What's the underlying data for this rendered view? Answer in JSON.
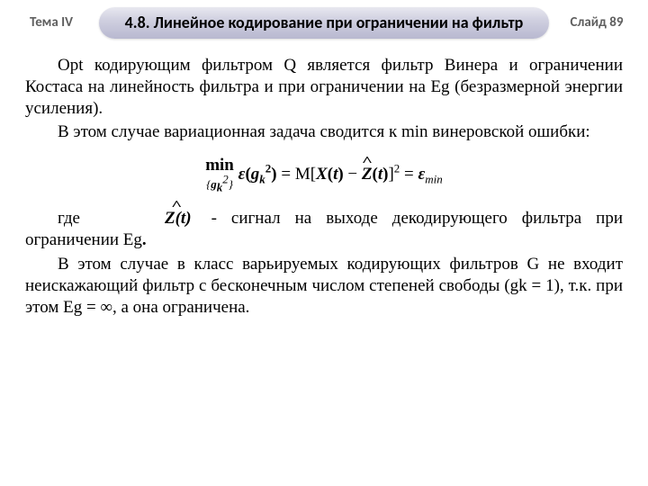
{
  "header": {
    "theme": "Тема IV",
    "title": "4.8. Линейное кодирование при ограничении на фильтр",
    "slide": "Слайд 89"
  },
  "body": {
    "p1": "Opt кодирующим фильтром Q является фильтр Винера и ограничении Костаса на линейность фильтра и при ограничении на Eg (безразмерной энергии усиления).",
    "p2": "В этом случае вариационная задача сводится к min винеровской ошибки:",
    "where_label": "где",
    "where_rest": " - сигнал на выходе декодирующего фильтра при ограничении Eg",
    "period": ".",
    "p3": "В этом случае в класс варьируемых кодирующих фильтров G не входит неискажающий фильтр с бесконечным числом степеней свободы (gk = 1), т.к. при этом Eg = ∞, а она ограничена."
  },
  "formula": {
    "min": "min",
    "min_sub_open": "{",
    "min_sub_g": "g",
    "min_sub_k": "k",
    "min_sub_sup": "2",
    "min_sub_close": "}",
    "eps": "ε",
    "open": "(",
    "g": "g",
    "g_k": "k",
    "g_sup": "2",
    "close": ")",
    "eq1": "  =  ",
    "M": "M",
    "br_open": "[",
    "X": "X",
    "t_open": "(",
    "t": "t",
    "t_close": ")",
    "minus": " − ",
    "Z": "Z",
    "br_close": "]",
    "sq": "2",
    "eq2": "  =  ",
    "eps2": "ε",
    "min_sub": "min"
  },
  "inline_zhat": {
    "Z": "Z",
    "open": "(",
    "t": "t",
    "close": ")"
  },
  "style": {
    "text_color": "#000000",
    "header_color": "#5f5f5f",
    "banner_gradient_top": "#e8e8f0",
    "banner_gradient_bottom": "#b8b8d0",
    "body_fontsize_pt": 14,
    "title_fontsize_pt": 14,
    "formula_fontsize_pt": 14
  }
}
